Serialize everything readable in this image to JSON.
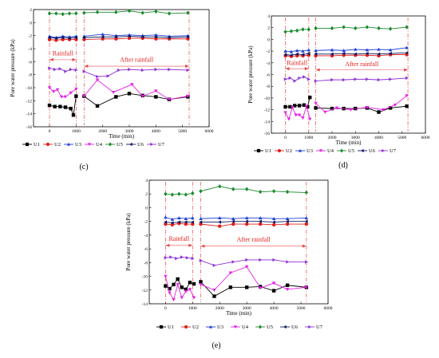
{
  "chart_data": [
    {
      "type": "line",
      "panel_label": "(c)",
      "xlabel": "Time (min)",
      "ylabel": "Pore water pressure (kPa)",
      "xlim": [
        -600,
        6000
      ],
      "ylim": [
        -16,
        2
      ],
      "x_ticks": [
        0,
        1000,
        2000,
        3000,
        4000,
        5000,
        6000
      ],
      "y_ticks": [
        -16,
        -14,
        -12,
        -10,
        -8,
        -6,
        -4,
        -2,
        0,
        2
      ],
      "y_tick_labels": [
        "-16",
        "-14",
        "-12",
        "-10",
        "-8",
        "-6",
        "-4",
        "-2",
        "0",
        "2"
      ],
      "vlines": [
        0,
        1000,
        1300,
        5250
      ],
      "rainfall_text": "Rainfall",
      "after_text": "After rainfall",
      "rainfall_arrow": [
        0,
        1000
      ],
      "after_arrow": [
        1300,
        5250
      ],
      "rainfall_label_y": -4.8,
      "after_label_y": -5.8,
      "series": [
        {
          "name": "U1",
          "x": [
            0,
            200,
            400,
            600,
            800,
            900,
            1000,
            1300,
            1800,
            2500,
            3000,
            3500,
            4000,
            4500,
            5200
          ],
          "y": [
            -12.7,
            -12.9,
            -12.9,
            -13,
            -13.2,
            -14.2,
            -11.3,
            -11.3,
            -12.8,
            -11.4,
            -10.9,
            -11.2,
            -11.4,
            -11.8,
            -11.4
          ]
        },
        {
          "name": "U2",
          "x": [
            0,
            250,
            500,
            750,
            1000,
            1300,
            2000,
            2500,
            3000,
            3500,
            4000,
            4500,
            5200
          ],
          "y": [
            -2.6,
            -2.7,
            -2.6,
            -2.6,
            -2.6,
            -2.6,
            -2.5,
            -2.5,
            -2.4,
            -2.4,
            -2.5,
            -2.5,
            -2.5
          ]
        },
        {
          "name": "U3",
          "x": [
            0,
            250,
            500,
            750,
            1000,
            1300,
            2000,
            2500,
            3000,
            3500,
            4000,
            4500,
            5200
          ],
          "y": [
            -2.1,
            -2.3,
            -2.1,
            -2.2,
            -2.1,
            -2.1,
            -1.8,
            -2,
            -1.9,
            -2,
            -1.9,
            -2.1,
            -2
          ]
        },
        {
          "name": "U4",
          "x": [
            0,
            150,
            300,
            450,
            600,
            800,
            1000,
            1300,
            1800,
            2400,
            3100,
            3500,
            4000,
            4500,
            5200
          ],
          "y": [
            -10,
            -10.6,
            -10.3,
            -11.4,
            -11.4,
            -10.8,
            -10.2,
            -11.3,
            -8.8,
            -10.7,
            -9.5,
            -11.3,
            -10.5,
            -11.8,
            -11.3
          ]
        },
        {
          "name": "U5",
          "x": [
            0,
            250,
            500,
            750,
            1000,
            1300,
            1800,
            2500,
            3000,
            3500,
            4000,
            4500,
            5200
          ],
          "y": [
            1.4,
            1.4,
            1.3,
            1.4,
            1.4,
            1.5,
            1.6,
            1.6,
            1.8,
            1.5,
            1.7,
            1.4,
            1.5
          ]
        },
        {
          "name": "U6",
          "x": [
            0,
            250,
            500,
            750,
            1000,
            1300,
            2000,
            2500,
            3000,
            3500,
            4000,
            4500,
            5200
          ],
          "y": [
            -2.3,
            -2.4,
            -2.3,
            -2.4,
            -2.3,
            -2.3,
            -2.2,
            -2.2,
            -2.1,
            -2.2,
            -2.2,
            -2.3,
            -2.2
          ]
        },
        {
          "name": "U7",
          "x": [
            0,
            200,
            400,
            600,
            800,
            1000,
            1300,
            1800,
            2200,
            2600,
            3000,
            3500,
            4000,
            4500,
            5200
          ],
          "y": [
            -7,
            -7.2,
            -7.1,
            -7.5,
            -7.2,
            -7.3,
            -7.5,
            -8.3,
            -8.2,
            -7.3,
            -7.2,
            -7.3,
            -7.2,
            -7.2,
            -7.3
          ]
        }
      ]
    },
    {
      "type": "line",
      "panel_label": "(d)",
      "xlabel": "Time (min)",
      "ylabel": "Pore water pressure (kPa)",
      "xlim": [
        -600,
        6000
      ],
      "ylim": [
        -16,
        4
      ],
      "x_ticks": [
        0,
        1000,
        2000,
        3000,
        4000,
        5000,
        6000
      ],
      "y_ticks": [
        -16,
        -14,
        -12,
        -10,
        -8,
        -6,
        -4,
        -2,
        0,
        2,
        4
      ],
      "y_tick_labels": [
        "-16",
        "-14",
        "-12",
        "-10",
        "-8",
        "-6",
        "-4",
        "-2",
        "0",
        "2",
        "4"
      ],
      "vlines": [
        0,
        1000,
        1300,
        5250
      ],
      "rainfall_text": "Rainfall",
      "after_text": "After rainfall",
      "rainfall_arrow": [
        0,
        1000
      ],
      "after_arrow": [
        1300,
        5250
      ],
      "rainfall_label_y": -4.1,
      "after_label_y": -4.3,
      "series": [
        {
          "name": "U1",
          "x": [
            0,
            200,
            400,
            600,
            800,
            950,
            1050,
            1300,
            2000,
            2500,
            3000,
            3500,
            4000,
            4500,
            5200
          ],
          "y": [
            -11.5,
            -11.5,
            -11.3,
            -11.3,
            -11.2,
            -11.5,
            -9.9,
            -11.7,
            -11.8,
            -11.8,
            -11.8,
            -11.7,
            -12.4,
            -11.7,
            -11.4
          ]
        },
        {
          "name": "U2",
          "x": [
            0,
            250,
            500,
            750,
            1000,
            1300,
            2000,
            2500,
            3000,
            3500,
            4000,
            4500,
            5200
          ],
          "y": [
            -2.8,
            -2.9,
            -2.8,
            -2.8,
            -2.7,
            -2.8,
            -2.8,
            -2.7,
            -2.7,
            -2.7,
            -2.8,
            -2.6,
            -2.6
          ]
        },
        {
          "name": "U3",
          "x": [
            0,
            250,
            500,
            750,
            1000,
            1300,
            2000,
            2500,
            3000,
            3500,
            4000,
            4500,
            5200
          ],
          "y": [
            -2,
            -2.1,
            -1.9,
            -2,
            -1.8,
            -1.9,
            -1.8,
            -1.9,
            -1.7,
            -1.8,
            -1.7,
            -1.8,
            -1.4
          ]
        },
        {
          "name": "U4",
          "x": [
            0,
            150,
            300,
            450,
            600,
            750,
            900,
            1050,
            1300,
            1700,
            2200,
            2800,
            3500,
            4200,
            4700,
            5200
          ],
          "y": [
            -12.5,
            -13.6,
            -11.6,
            -12.9,
            -12.9,
            -13.4,
            -11.4,
            -13.6,
            -10.9,
            -12.4,
            -11.7,
            -12,
            -11.6,
            -12,
            -11.2,
            -9.6
          ]
        },
        {
          "name": "U5",
          "x": [
            0,
            250,
            500,
            750,
            1000,
            1300,
            2000,
            2500,
            3000,
            3500,
            4000,
            4500,
            5200
          ],
          "y": [
            1.3,
            1.4,
            1.5,
            1.7,
            1.7,
            1.9,
            1.9,
            2.1,
            1.9,
            2.1,
            1.9,
            1.8,
            2.1
          ]
        },
        {
          "name": "U6",
          "x": [
            0,
            250,
            500,
            750,
            1000,
            1300,
            2000,
            2500,
            3000,
            3500,
            4000,
            4500,
            5200
          ],
          "y": [
            -2.6,
            -2.7,
            -2.5,
            -2.6,
            -2.4,
            -2.5,
            -2.5,
            -2.4,
            -2.5,
            -2.4,
            -2.5,
            -2.4,
            -2.3
          ]
        },
        {
          "name": "U7",
          "x": [
            0,
            200,
            400,
            600,
            800,
            1000,
            1300,
            2000,
            2500,
            3000,
            3500,
            4000,
            4500,
            5200
          ],
          "y": [
            -6.8,
            -6.6,
            -7.1,
            -6.6,
            -6.4,
            -6.8,
            -7.1,
            -6.9,
            -6.9,
            -6.8,
            -6.8,
            -6.9,
            -6.8,
            -6.6
          ]
        }
      ]
    },
    {
      "type": "line",
      "panel_label": "(e)",
      "xlabel": "Time (min)",
      "ylabel": "Pore water pressure (kPa)",
      "xlim": [
        -600,
        6000
      ],
      "ylim": [
        -14,
        4
      ],
      "x_ticks": [
        0,
        1000,
        2000,
        3000,
        4000,
        5000,
        6000
      ],
      "y_ticks": [
        -14,
        -12,
        -10,
        -8,
        -6,
        -4,
        -2,
        0,
        2,
        4
      ],
      "y_tick_labels": [
        "-14",
        "-12",
        "-10",
        "-8",
        "-6",
        "-4",
        "-2",
        "0",
        "2",
        "4"
      ],
      "vlines": [
        0,
        1000,
        1300,
        5200
      ],
      "rainfall_text": "Rainfall",
      "after_text": "After rainfall",
      "rainfall_arrow": [
        0,
        1000
      ],
      "after_arrow": [
        1300,
        5200
      ],
      "rainfall_label_y": -4.6,
      "after_label_y": -4.7,
      "series": [
        {
          "name": "U1",
          "x": [
            0,
            150,
            300,
            450,
            600,
            750,
            900,
            1050,
            1300,
            1800,
            2400,
            3000,
            3500,
            4000,
            4500,
            5200
          ],
          "y": [
            -11.4,
            -11.8,
            -11.2,
            -10.4,
            -11.6,
            -11.9,
            -10.9,
            -11.1,
            -10.8,
            -12.9,
            -11.6,
            -11.6,
            -11.5,
            -12.1,
            -11.3,
            -11.6
          ]
        },
        {
          "name": "U2",
          "x": [
            0,
            250,
            500,
            750,
            1000,
            1300,
            2000,
            2500,
            3000,
            3500,
            4000,
            4500,
            5200
          ],
          "y": [
            -2.4,
            -2.5,
            -2.3,
            -2.4,
            -2.4,
            -2.4,
            -2.7,
            -2.4,
            -2.4,
            -2.4,
            -2.5,
            -2.4,
            -2.4
          ]
        },
        {
          "name": "U3",
          "x": [
            0,
            250,
            500,
            750,
            1000,
            1300,
            2000,
            2500,
            3000,
            3500,
            4000,
            4500,
            5200
          ],
          "y": [
            -1.4,
            -1.7,
            -1.5,
            -1.6,
            -1.5,
            -1.6,
            -1.5,
            -1.6,
            -1.5,
            -1.5,
            -1.6,
            -1.6,
            -1.5
          ]
        },
        {
          "name": "U4",
          "x": [
            0,
            150,
            300,
            450,
            600,
            750,
            900,
            1050,
            1300,
            1800,
            2400,
            3000,
            3500,
            4000,
            4500,
            5200
          ],
          "y": [
            -10,
            -12.4,
            -13.4,
            -11.2,
            -13.1,
            -12.2,
            -11.9,
            -13.1,
            -11.2,
            -12,
            -9.5,
            -8.6,
            -11.7,
            -11,
            -11.9,
            -11.6
          ]
        },
        {
          "name": "U5",
          "x": [
            0,
            250,
            500,
            750,
            1000,
            1300,
            2000,
            2500,
            3000,
            3500,
            4000,
            4500,
            5200
          ],
          "y": [
            2,
            1.9,
            2,
            1.9,
            2.1,
            2.4,
            3.1,
            2.7,
            2.7,
            2.3,
            2.4,
            2.3,
            2.2
          ]
        },
        {
          "name": "U6",
          "x": [
            0,
            250,
            500,
            750,
            1000,
            1300,
            2000,
            2500,
            3000,
            3500,
            4000,
            4500,
            5200
          ],
          "y": [
            -2.1,
            -2.2,
            -2.1,
            -2.1,
            -2.1,
            -2.1,
            -2.1,
            -2,
            -2,
            -2,
            -2.1,
            -2,
            -2
          ]
        },
        {
          "name": "U7",
          "x": [
            0,
            200,
            400,
            600,
            800,
            1000,
            1300,
            1800,
            2500,
            3000,
            3500,
            4000,
            4500,
            5200
          ],
          "y": [
            -7.3,
            -7.2,
            -7.4,
            -7.2,
            -7.3,
            -7.4,
            -7.7,
            -8.4,
            -7.9,
            -7.6,
            -7.6,
            -7.6,
            -7.9,
            -7.9
          ]
        }
      ]
    }
  ],
  "style": {
    "series_colors": {
      "U1": "#000000",
      "U2": "#e0201b",
      "U3": "#1f3fd6",
      "U4": "#e81ee1",
      "U5": "#1c8a2c",
      "U6": "#0f1760",
      "U7": "#8e32d6"
    },
    "series_markers": {
      "U1": "square",
      "U2": "circle",
      "U3": "triangle-up",
      "U4": "triangle-down",
      "U5": "diamond",
      "U6": "triangle-left",
      "U7": "triangle-right"
    },
    "guide_line_color": "#e84b4b"
  }
}
